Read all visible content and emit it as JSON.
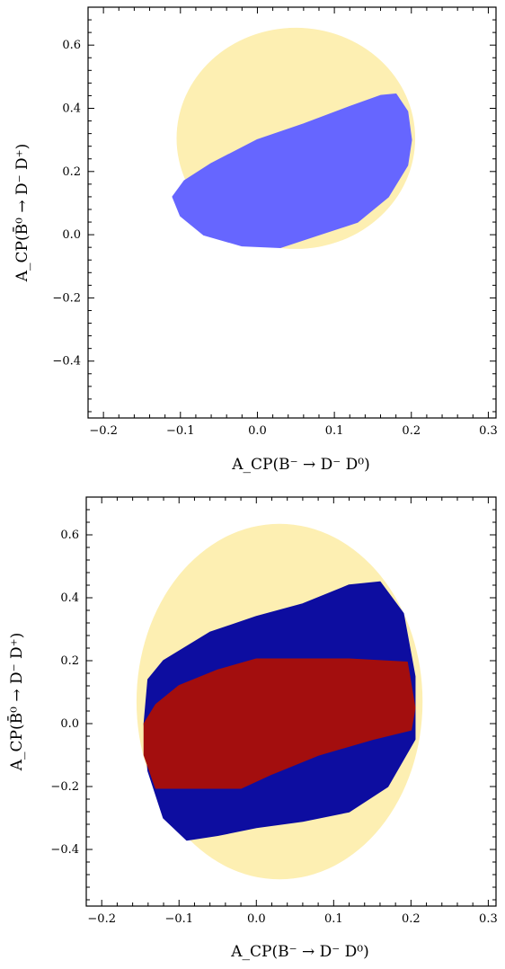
{
  "chart_data": [
    {
      "type": "area",
      "panel": "top",
      "xlabel": "A_CP(B⁻ → D⁻ D⁰)",
      "ylabel": "A_CP(B̄⁰ → D⁻ D⁺)",
      "xlim": [
        -0.22,
        0.31
      ],
      "ylim": [
        -0.58,
        0.72
      ],
      "xticks": [
        -0.2,
        -0.1,
        0.0,
        0.1,
        0.2,
        0.3
      ],
      "yticks": [
        -0.4,
        -0.2,
        0.0,
        0.2,
        0.4,
        0.6
      ],
      "xtick_labels": [
        "−0.2",
        "−0.1",
        "0.0",
        "0.1",
        "0.2",
        "0.3"
      ],
      "ytick_labels": [
        "−0.4",
        "−0.2",
        "0.0",
        "0.2",
        "0.4",
        "0.6"
      ],
      "regions": [
        {
          "color": "#fdefb2",
          "shape": "ellipse",
          "center": [
            0.05,
            0.305
          ],
          "radii": [
            0.155,
            0.35
          ]
        },
        {
          "color": "#6666ff",
          "shape": "polygon",
          "points": [
            [
              -0.11,
              0.12
            ],
            [
              -0.095,
              0.17
            ],
            [
              -0.06,
              0.225
            ],
            [
              0.0,
              0.3
            ],
            [
              0.06,
              0.35
            ],
            [
              0.12,
              0.405
            ],
            [
              0.16,
              0.44
            ],
            [
              0.18,
              0.445
            ],
            [
              0.195,
              0.39
            ],
            [
              0.2,
              0.3
            ],
            [
              0.195,
              0.22
            ],
            [
              0.17,
              0.12
            ],
            [
              0.13,
              0.04
            ],
            [
              0.08,
              0.0
            ],
            [
              0.03,
              -0.04
            ],
            [
              -0.02,
              -0.035
            ],
            [
              -0.07,
              0.0
            ],
            [
              -0.1,
              0.06
            ]
          ]
        }
      ],
      "grid": false
    },
    {
      "type": "area",
      "panel": "bottom",
      "xlabel": "A_CP(B⁻ → D⁻ D⁰)",
      "ylabel": "A_CP(B̄⁰ → D⁻ D⁺)",
      "xlim": [
        -0.22,
        0.31
      ],
      "ylim": [
        -0.58,
        0.72
      ],
      "xticks": [
        -0.2,
        -0.1,
        0.0,
        0.1,
        0.2,
        0.3
      ],
      "yticks": [
        -0.4,
        -0.2,
        0.0,
        0.2,
        0.4,
        0.6
      ],
      "xtick_labels": [
        "−0.2",
        "−0.1",
        "0.0",
        "0.1",
        "0.2",
        "0.3"
      ],
      "ytick_labels": [
        "−0.4",
        "−0.2",
        "0.0",
        "0.2",
        "0.4",
        "0.6"
      ],
      "regions": [
        {
          "color": "#fdefb2",
          "shape": "ellipse",
          "center": [
            0.03,
            0.07
          ],
          "radii": [
            0.185,
            0.565
          ]
        },
        {
          "color": "#0d0da0",
          "shape": "polygon",
          "points": [
            [
              -0.14,
              0.14
            ],
            [
              -0.12,
              0.2
            ],
            [
              -0.06,
              0.29
            ],
            [
              0.0,
              0.34
            ],
            [
              0.06,
              0.38
            ],
            [
              0.12,
              0.44
            ],
            [
              0.16,
              0.45
            ],
            [
              0.19,
              0.35
            ],
            [
              0.205,
              0.15
            ],
            [
              0.205,
              -0.05
            ],
            [
              0.17,
              -0.2
            ],
            [
              0.12,
              -0.28
            ],
            [
              0.06,
              -0.31
            ],
            [
              0.0,
              -0.33
            ],
            [
              -0.05,
              -0.355
            ],
            [
              -0.09,
              -0.37
            ],
            [
              -0.12,
              -0.3
            ],
            [
              -0.14,
              -0.15
            ],
            [
              -0.145,
              0.0
            ]
          ]
        },
        {
          "color": "#a30e0e",
          "shape": "polygon",
          "points": [
            [
              -0.13,
              0.06
            ],
            [
              -0.1,
              0.12
            ],
            [
              -0.05,
              0.17
            ],
            [
              0.0,
              0.205
            ],
            [
              0.06,
              0.205
            ],
            [
              0.12,
              0.205
            ],
            [
              0.195,
              0.195
            ],
            [
              0.205,
              0.05
            ],
            [
              0.2,
              -0.02
            ],
            [
              0.15,
              -0.05
            ],
            [
              0.08,
              -0.1
            ],
            [
              0.02,
              -0.16
            ],
            [
              -0.02,
              -0.205
            ],
            [
              -0.08,
              -0.205
            ],
            [
              -0.13,
              -0.205
            ],
            [
              -0.145,
              -0.1
            ],
            [
              -0.145,
              0.0
            ]
          ]
        }
      ],
      "grid": false
    }
  ]
}
